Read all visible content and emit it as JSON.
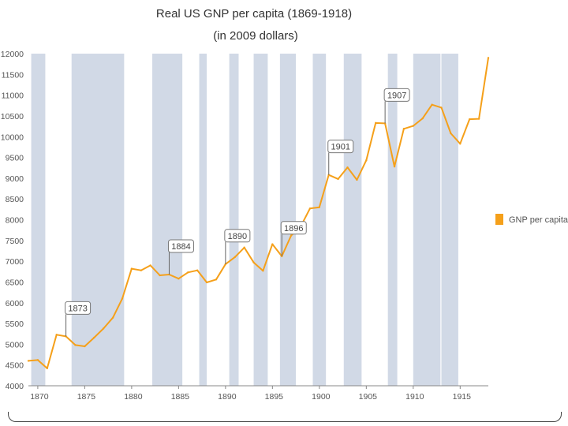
{
  "chart_data": {
    "type": "line",
    "title": "Real US GNP per capita (1869-1918)",
    "subtitle": "(in 2009 dollars)",
    "xlabel": "",
    "ylabel": "",
    "xlim": [
      1869,
      1918
    ],
    "ylim": [
      4000,
      12000
    ],
    "x_ticks": [
      1870,
      1875,
      1880,
      1885,
      1890,
      1895,
      1900,
      1905,
      1910,
      1915
    ],
    "y_ticks": [
      4000,
      4500,
      5000,
      5500,
      6000,
      6500,
      7000,
      7500,
      8000,
      8500,
      9000,
      9500,
      10000,
      10500,
      11000,
      11500,
      12000
    ],
    "series": [
      {
        "name": "GNP per capita",
        "color": "#f5a01a",
        "x": [
          1869,
          1870,
          1871,
          1872,
          1873,
          1874,
          1875,
          1876,
          1877,
          1878,
          1879,
          1880,
          1881,
          1882,
          1883,
          1884,
          1885,
          1886,
          1887,
          1888,
          1889,
          1890,
          1891,
          1892,
          1893,
          1894,
          1895,
          1896,
          1897,
          1898,
          1899,
          1900,
          1901,
          1902,
          1903,
          1904,
          1905,
          1906,
          1907,
          1908,
          1909,
          1910,
          1911,
          1912,
          1913,
          1914,
          1915,
          1916,
          1917,
          1918
        ],
        "values": [
          4600,
          4620,
          4420,
          5230,
          5190,
          4980,
          4950,
          5160,
          5380,
          5640,
          6100,
          6820,
          6780,
          6900,
          6660,
          6680,
          6580,
          6730,
          6780,
          6490,
          6560,
          6930,
          7100,
          7330,
          6970,
          6770,
          7410,
          7120,
          7620,
          7830,
          8270,
          8300,
          9080,
          8980,
          9260,
          8960,
          9430,
          10330,
          10320,
          9280,
          10190,
          10260,
          10440,
          10770,
          10700,
          10080,
          9830,
          10420,
          10430,
          11900
        ]
      }
    ],
    "recession_bands": [
      {
        "start": 1869.3,
        "end": 1870.8
      },
      {
        "start": 1873.6,
        "end": 1879.2
      },
      {
        "start": 1882.2,
        "end": 1885.4
      },
      {
        "start": 1887.2,
        "end": 1888.0
      },
      {
        "start": 1890.4,
        "end": 1891.4
      },
      {
        "start": 1893.0,
        "end": 1894.5
      },
      {
        "start": 1895.8,
        "end": 1897.5
      },
      {
        "start": 1899.3,
        "end": 1900.7
      },
      {
        "start": 1902.6,
        "end": 1904.5
      },
      {
        "start": 1907.3,
        "end": 1908.3
      },
      {
        "start": 1910.0,
        "end": 1912.9
      },
      {
        "start": 1913.0,
        "end": 1914.8
      }
    ],
    "annotations": [
      {
        "label": "1873",
        "x": 1873,
        "value": 5190
      },
      {
        "label": "1884",
        "x": 1884,
        "value": 6680
      },
      {
        "label": "1890",
        "x": 1890,
        "value": 6930
      },
      {
        "label": "1896",
        "x": 1896,
        "value": 7120
      },
      {
        "label": "1901",
        "x": 1901,
        "value": 9080
      },
      {
        "label": "1907",
        "x": 1907,
        "value": 10320
      }
    ],
    "legend": {
      "label": "GNP per capita",
      "position": "right"
    },
    "band_color": "#d1d9e6",
    "line_color": "#f5a01a"
  }
}
